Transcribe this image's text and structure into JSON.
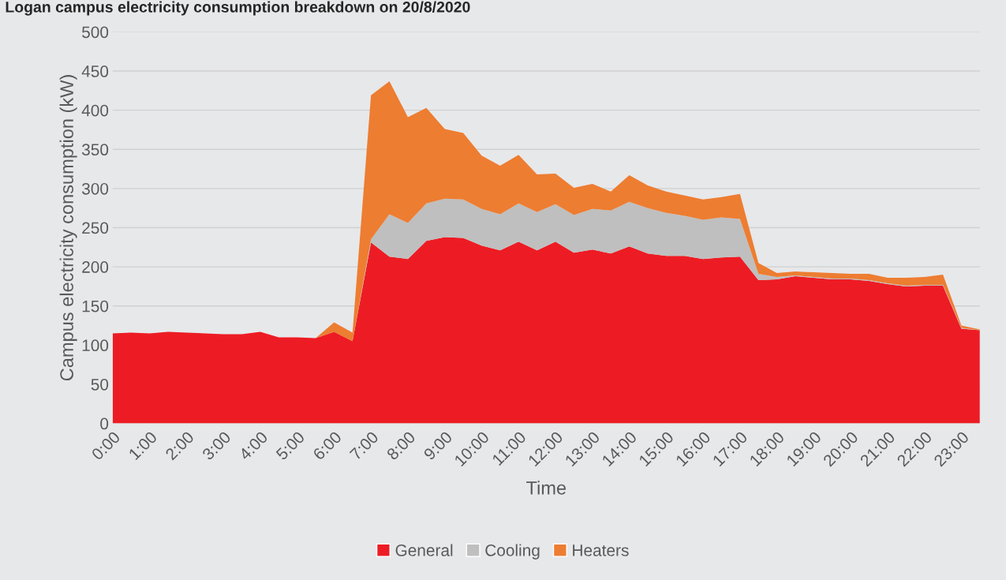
{
  "chart_data": {
    "type": "area",
    "stacked": true,
    "title": "Logan campus electricity consumption breakdown on 20/8/2020",
    "xlabel": "Time",
    "ylabel": "Campus electricity consumption (kW)",
    "categories": [
      "0:00",
      null,
      "1:00",
      null,
      "2:00",
      null,
      "3:00",
      null,
      "4:00",
      null,
      "5:00",
      null,
      "6:00",
      null,
      "7:00",
      null,
      "8:00",
      null,
      "9:00",
      null,
      "10:00",
      null,
      "11:00",
      null,
      "12:00",
      null,
      "13:00",
      null,
      "14:00",
      null,
      "15:00",
      null,
      "16:00",
      null,
      "17:00",
      null,
      "18:00",
      null,
      "19:00",
      null,
      "20:00",
      null,
      "21:00",
      null,
      "22:00",
      null,
      "23:00",
      null
    ],
    "series": [
      {
        "name": "General",
        "color": "#ed1c24",
        "values": [
          115,
          116,
          115,
          117,
          116,
          115,
          114,
          114,
          117,
          110,
          110,
          109,
          117,
          105,
          231,
          213,
          210,
          233,
          238,
          237,
          227,
          221,
          232,
          221,
          232,
          218,
          222,
          217,
          226,
          217,
          214,
          214,
          210,
          212,
          213,
          183,
          184,
          188,
          186,
          184,
          184,
          182,
          178,
          175,
          176,
          176,
          121,
          119
        ]
      },
      {
        "name": "Cooling",
        "color": "#bfbfbf",
        "values": [
          0,
          0,
          0,
          0,
          0,
          0,
          0,
          0,
          0,
          0,
          0,
          0,
          0,
          0,
          4,
          54,
          46,
          48,
          49,
          49,
          47,
          46,
          49,
          49,
          48,
          48,
          52,
          55,
          57,
          58,
          55,
          51,
          50,
          51,
          48,
          8,
          3,
          1,
          1,
          1,
          1,
          1,
          1,
          1,
          1,
          1,
          1,
          0
        ]
      },
      {
        "name": "Heaters",
        "color": "#ed7d31",
        "values": [
          0,
          0,
          0,
          0,
          0,
          0,
          0,
          0,
          0,
          0,
          0,
          0,
          12,
          11,
          184,
          170,
          135,
          122,
          89,
          85,
          68,
          62,
          62,
          48,
          39,
          35,
          32,
          24,
          34,
          29,
          27,
          26,
          26,
          26,
          32,
          14,
          5,
          5,
          6,
          7,
          6,
          8,
          7,
          10,
          10,
          13,
          3,
          1
        ]
      }
    ],
    "ylim": [
      0,
      500
    ],
    "yticks": [
      0,
      50,
      100,
      150,
      200,
      250,
      300,
      350,
      400,
      450,
      500
    ],
    "grid": "y",
    "legend": "bottom"
  }
}
